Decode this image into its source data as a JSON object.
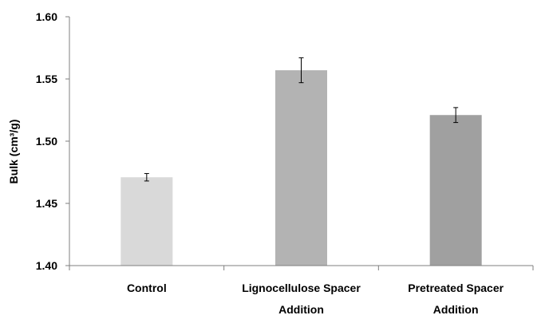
{
  "chart_data": {
    "type": "bar",
    "title": "",
    "xlabel": "",
    "ylabel": "Bulk (cm³/g)",
    "ylim": [
      1.4,
      1.6
    ],
    "yticks": [
      "1.40",
      "1.45",
      "1.50",
      "1.55",
      "1.60"
    ],
    "grid": false,
    "categories": [
      [
        "Control"
      ],
      [
        "Lignocellulose Spacer",
        "Addition"
      ],
      [
        "Pretreated Spacer",
        "Addition"
      ]
    ],
    "values": [
      1.471,
      1.557,
      1.521
    ],
    "errors": [
      0.003,
      0.01,
      0.006
    ],
    "colors": [
      "#d9d9d9",
      "#b3b3b3",
      "#a0a0a0"
    ]
  }
}
